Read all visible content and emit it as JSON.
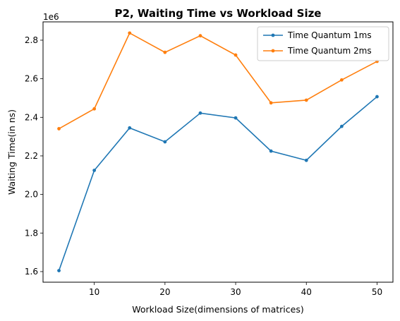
{
  "chart_data": {
    "type": "line",
    "title": "P2, Waiting Time vs Workload Size",
    "xlabel": "Workload Size(dimensions of matrices)",
    "ylabel": "Waiting Time(in ns)",
    "offset_text": "1e6",
    "x": [
      5,
      10,
      15,
      20,
      25,
      30,
      35,
      40,
      45,
      50
    ],
    "xlim": [
      2.75,
      52.25
    ],
    "ylim": [
      1.545,
      2.895
    ],
    "x_ticks": [
      10,
      20,
      30,
      40,
      50
    ],
    "x_tick_labels": [
      "10",
      "20",
      "30",
      "40",
      "50"
    ],
    "y_ticks": [
      1.6,
      1.8,
      2.0,
      2.2,
      2.4,
      2.6,
      2.8
    ],
    "y_tick_labels": [
      "1.6",
      "1.8",
      "2.0",
      "2.2",
      "2.4",
      "2.6",
      "2.8"
    ],
    "grid": false,
    "legend_position": "top-right",
    "series": [
      {
        "name": "Time Quantum 1ms",
        "color": "#1f77b4",
        "values": [
          1.605,
          2.125,
          2.345,
          2.273,
          2.422,
          2.397,
          2.225,
          2.177,
          2.353,
          2.507
        ]
      },
      {
        "name": "Time Quantum 2ms",
        "color": "#ff7f0e",
        "values": [
          2.341,
          2.444,
          2.837,
          2.737,
          2.823,
          2.723,
          2.475,
          2.489,
          2.594,
          2.69
        ]
      }
    ]
  }
}
